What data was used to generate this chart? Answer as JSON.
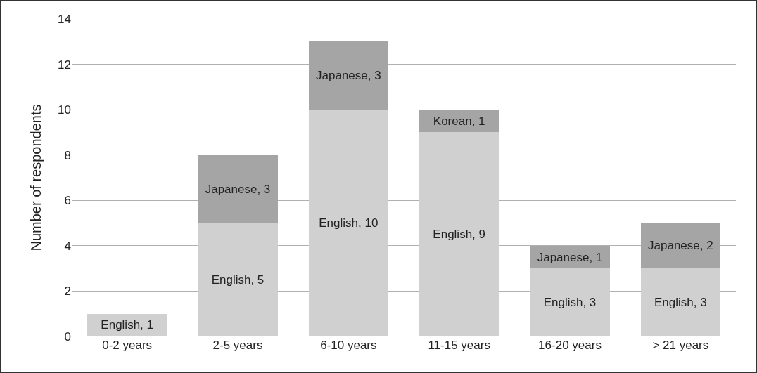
{
  "chart_data": {
    "type": "bar",
    "stacked": true,
    "ylabel": "Number of respondents",
    "categories": [
      "0-2 years",
      "2-5 years",
      "6-10 years",
      "11-15 years",
      "16-20 years",
      "> 21 years"
    ],
    "series": [
      {
        "color": "#d0d0d0",
        "values": [
          1,
          5,
          10,
          9,
          3,
          3
        ],
        "value_labels": [
          "English, 1",
          "English, 5",
          "English, 10",
          "English, 9",
          "English, 3",
          "English, 3"
        ]
      },
      {
        "color": "#a5a5a5",
        "values": [
          0,
          3,
          3,
          1,
          1,
          2
        ],
        "value_labels": [
          null,
          "Japanese, 3",
          "Japanese, 3",
          "Korean, 1",
          "Japanese, 1",
          "Japanese, 2"
        ]
      }
    ],
    "ylim": [
      0,
      14
    ],
    "yticks": [
      0,
      2,
      4,
      6,
      8,
      10,
      12,
      14
    ],
    "grid": "y"
  }
}
